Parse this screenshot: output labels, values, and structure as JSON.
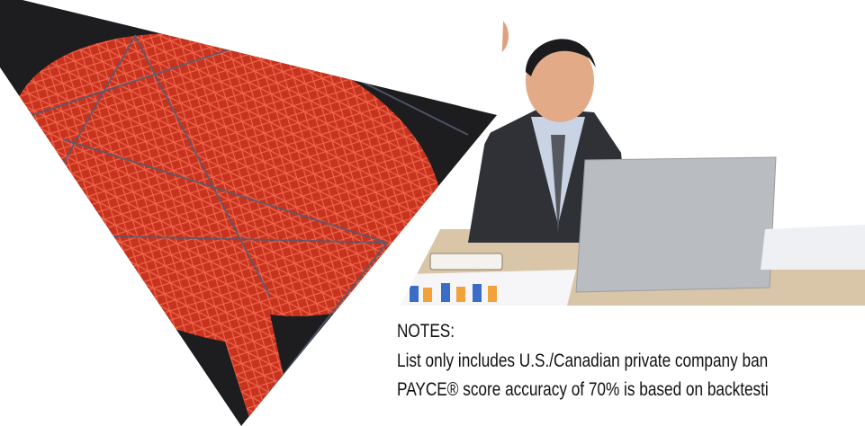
{
  "notes": {
    "heading": "NOTES:",
    "lines": [
      "List only includes U.S./Canadian private company ban",
      "PAYCE® score accuracy of 70% is based on backtesti"
    ]
  }
}
